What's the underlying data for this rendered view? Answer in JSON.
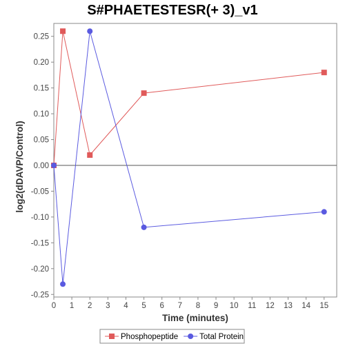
{
  "chart_data": {
    "type": "line",
    "title": "S#PHAETESTESR(+ 3)_v1",
    "xlabel": "Time (minutes)",
    "ylabel": "log2(dDAVP/Control)",
    "xlim": [
      0,
      15.7
    ],
    "ylim": [
      -0.255,
      0.275
    ],
    "xticks": [
      0,
      1,
      2,
      3,
      4,
      5,
      6,
      7,
      8,
      9,
      10,
      11,
      12,
      13,
      14,
      15
    ],
    "yticks": [
      -0.25,
      -0.2,
      -0.15,
      -0.1,
      -0.05,
      0.0,
      0.05,
      0.1,
      0.15,
      0.2,
      0.25
    ],
    "ytick_labels": [
      "-0.25",
      "-0.20",
      "-0.15",
      "-0.10",
      "-0.05",
      "0.00",
      "0.05",
      "0.10",
      "0.15",
      "0.20",
      "0.25"
    ],
    "zero_line": true,
    "grid": false,
    "legend_position": "bottom-center",
    "series": [
      {
        "name": "Phosphopeptide",
        "color": "#e05a5a",
        "marker": "square",
        "x": [
          0,
          0.5,
          2,
          5,
          15
        ],
        "y": [
          0.0,
          0.26,
          0.02,
          0.14,
          0.18
        ]
      },
      {
        "name": "Total Protein",
        "color": "#5a5ae0",
        "marker": "circle",
        "x": [
          0,
          0.5,
          2,
          5,
          15
        ],
        "y": [
          0.0,
          -0.23,
          0.26,
          -0.12,
          -0.09
        ]
      }
    ]
  }
}
